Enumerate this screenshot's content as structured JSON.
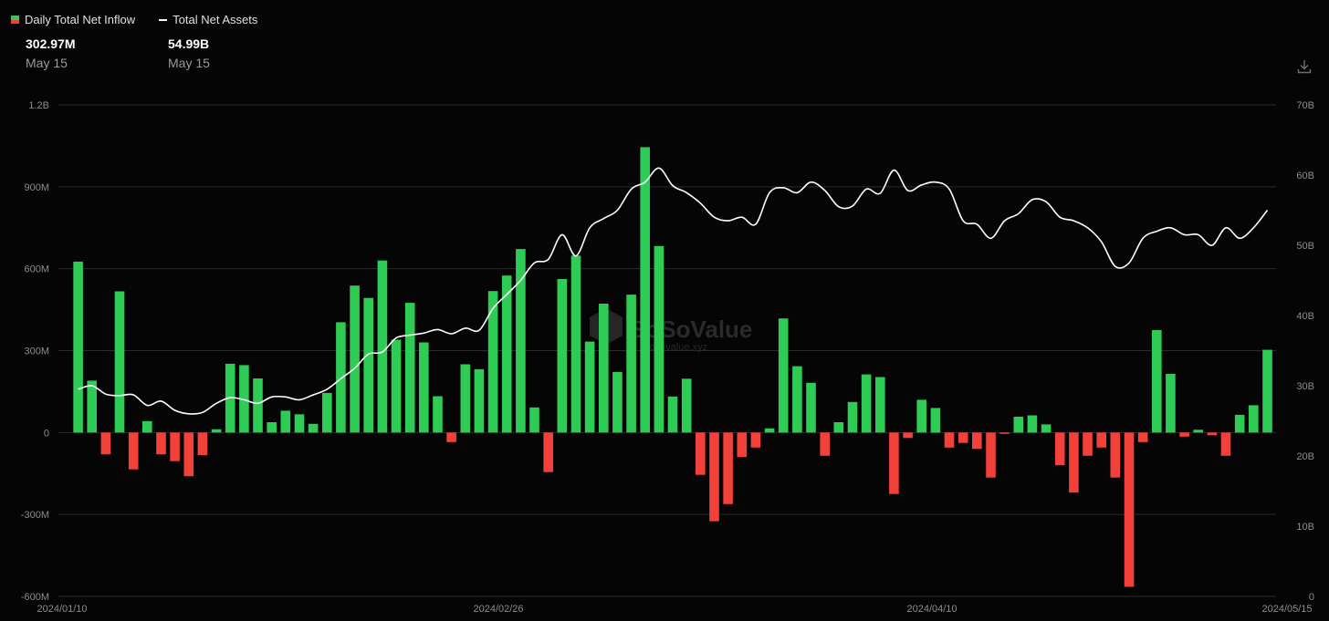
{
  "legend": {
    "bars_label": "Daily Total Net Inflow",
    "line_label": "Total Net Assets"
  },
  "stats": {
    "inflow_value": "302.97M",
    "inflow_date": "May 15",
    "assets_value": "54.99B",
    "assets_date": "May 15"
  },
  "watermark": {
    "brand": "SoSoValue",
    "url": "sosovalue.xyz"
  },
  "icons": {
    "download": "download-icon"
  },
  "colors": {
    "positive": "#2ecc55",
    "negative": "#f2403a",
    "line": "#ffffff",
    "grid": "#2b2b2b"
  },
  "chart_data": {
    "type": "bar",
    "title": "",
    "xlabel": "",
    "ylabel": "",
    "ylim": [
      -600,
      1200
    ],
    "y2lim": [
      0,
      70
    ],
    "y_ticks": [
      "1.2B",
      "900M",
      "600M",
      "300M",
      "0",
      "-300M",
      "-600M"
    ],
    "y2_ticks": [
      "70B",
      "60B",
      "50B",
      "40B",
      "30B",
      "20B",
      "10B",
      "0"
    ],
    "x_ticks": [
      "2024/01/10",
      "2024/02/26",
      "2024/04/10",
      "2024/05/15"
    ],
    "grid": true,
    "legend_position": "top-left",
    "series": [
      {
        "name": "Daily Total Net Inflow",
        "unit": "M USD",
        "values": [
          626,
          190,
          -80,
          517,
          -135,
          42,
          -80,
          -105,
          -160,
          -83,
          12,
          252,
          247,
          198,
          38,
          80,
          67,
          32,
          145,
          404,
          538,
          493,
          630,
          340,
          475,
          330,
          133,
          -35,
          250,
          232,
          518,
          575,
          672,
          92,
          -145,
          562,
          648,
          333,
          472,
          222,
          505,
          1045,
          683,
          132,
          197,
          -155,
          -325,
          -262,
          -90,
          -55,
          15,
          418,
          243,
          182,
          -85,
          38,
          112,
          213,
          203,
          -225,
          -20,
          120,
          90,
          -55,
          -38,
          -60,
          -165,
          -5,
          58,
          63,
          30,
          -120,
          -220,
          -85,
          -55,
          -165,
          -565,
          -35,
          375,
          215,
          -15,
          10,
          -10,
          -85,
          65,
          100,
          303
        ]
      },
      {
        "name": "Total Net Assets",
        "unit": "B USD",
        "values": [
          29.5,
          30.0,
          28.8,
          28.6,
          28.7,
          27.2,
          27.8,
          26.5,
          26.0,
          26.2,
          27.5,
          28.3,
          28.0,
          27.5,
          28.4,
          28.4,
          28.0,
          28.7,
          29.5,
          31.0,
          32.5,
          34.5,
          34.8,
          36.8,
          37.2,
          37.5,
          38.0,
          37.4,
          38.2,
          37.9,
          41.0,
          43.0,
          45.0,
          47.5,
          48.0,
          51.5,
          48.5,
          52.5,
          53.8,
          55.0,
          58.0,
          59.0,
          61.0,
          58.5,
          57.5,
          56.0,
          54.0,
          53.5,
          54.0,
          53.0,
          57.5,
          58.2,
          57.5,
          59.0,
          57.8,
          55.5,
          55.6,
          58.0,
          57.4,
          60.7,
          57.8,
          58.6,
          59.0,
          58.0,
          53.5,
          53.0,
          51.0,
          53.5,
          54.5,
          56.5,
          56.2,
          54.0,
          53.5,
          52.5,
          50.5,
          47.0,
          47.5,
          51.0,
          52.0,
          52.5,
          51.5,
          51.5,
          50.0,
          52.5,
          51.0,
          52.5,
          55.0
        ]
      }
    ]
  }
}
